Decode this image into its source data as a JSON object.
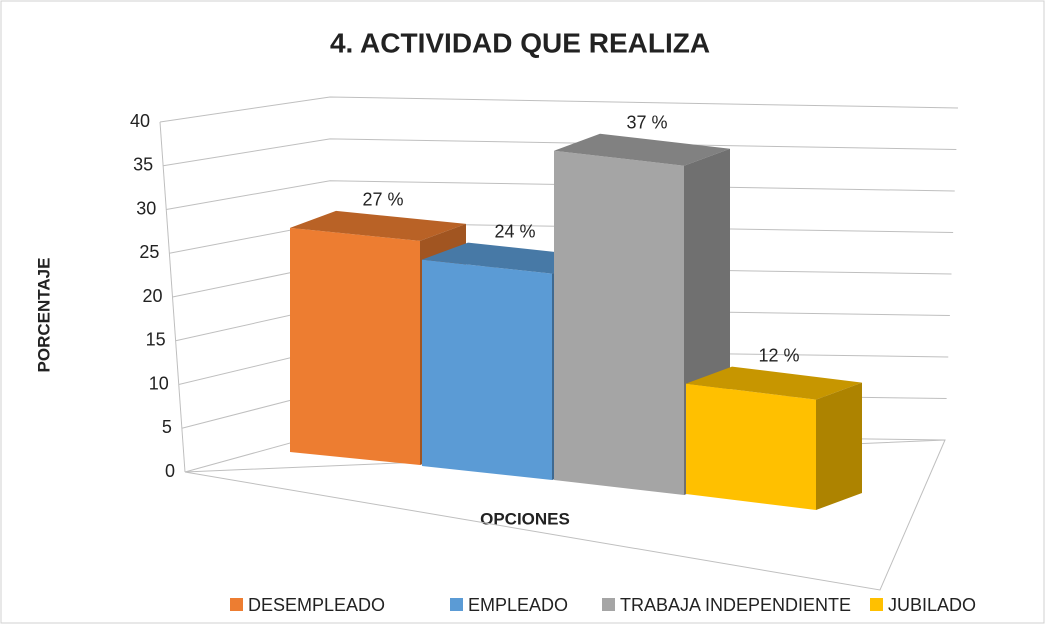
{
  "chart_data": {
    "type": "bar3d",
    "title": "4. ACTIVIDAD QUE REALIZA",
    "y_label": "PORCENTAJE",
    "x_label": "OPCIONES",
    "categories": [
      "DESEMPLEADO",
      "EMPLEADO",
      "TRABAJA INDEPENDIENTE",
      "JUBILADO"
    ],
    "values": [
      27,
      24,
      37,
      12
    ],
    "value_labels": [
      "27 %",
      "24 %",
      "37 %",
      "12 %"
    ],
    "colors": [
      "#ed7d31",
      "#5b9bd5",
      "#a5a5a5",
      "#ffc000"
    ],
    "ylim": [
      0,
      40
    ],
    "yticks": [
      0,
      5,
      10,
      15,
      20,
      25,
      30,
      35,
      40
    ],
    "grid": true,
    "legend": "bottom"
  }
}
